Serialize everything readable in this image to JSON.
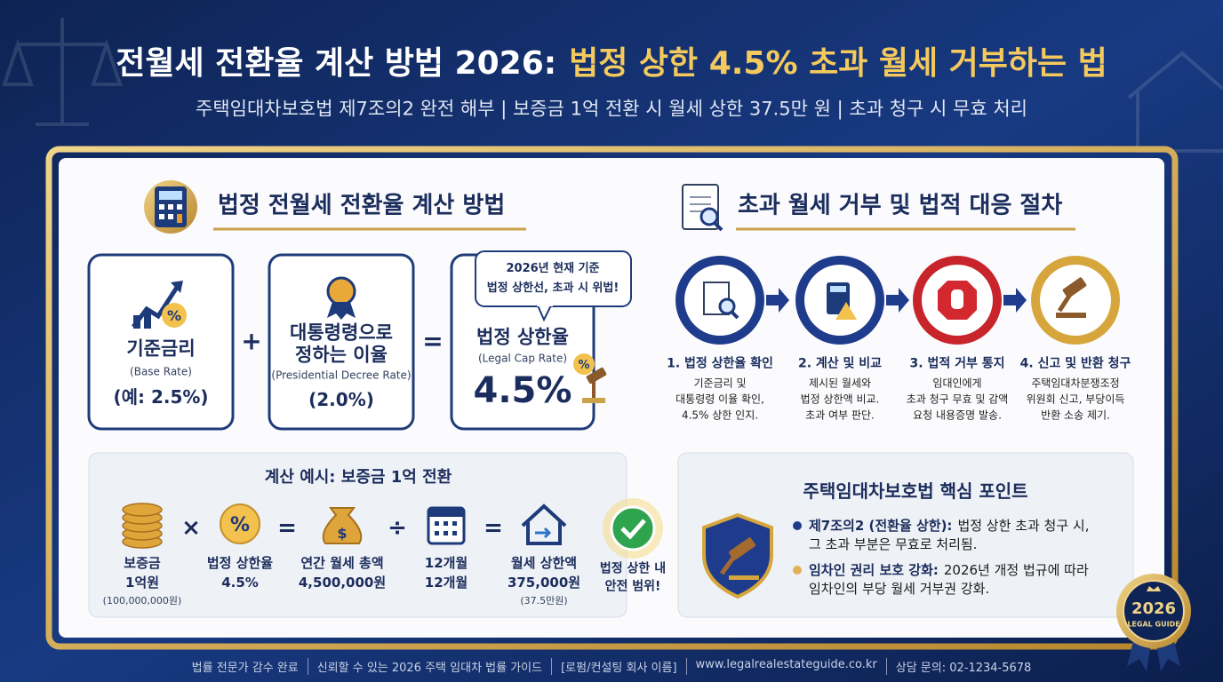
{
  "header": {
    "title_lead": "전월세 전환율 계산 방법 2026:",
    "title_highlight": "법정 상한 4.5% 초과 월세 거부하는 법",
    "subtitle": "주택임대차보호법 제7조의2 완전 해부 | 보증금 1억 전환 시 월세 상한 37.5만 원 | 초과 청구 시 무효 처리"
  },
  "calculation": {
    "heading": "법정 전월세 전환율 계산 방법",
    "cards": [
      {
        "title_lines": [
          "기준금리"
        ],
        "subtitle": "(Base Rate)",
        "value": "(예: 2.5%)"
      },
      {
        "title_lines": [
          "대통령령으로",
          "정하는 이율"
        ],
        "subtitle": "(Presidential Decree Rate)",
        "value": "(2.0%)"
      },
      {
        "title_lines": [
          "법정 상한율"
        ],
        "subtitle": "(Legal Cap Rate)",
        "value": "4.5%"
      }
    ],
    "operators": [
      "+",
      "="
    ],
    "callout_lines": [
      "2026년 현재 기준",
      "법정 상한선, 초과 시 위법!"
    ]
  },
  "example": {
    "title": "계산 예시: 보증금 1억 전환",
    "items": [
      {
        "label": "보증금",
        "value": "1억원",
        "note": "(100,000,000원)"
      },
      {
        "label": "법정 상한율",
        "value": "4.5%"
      },
      {
        "label": "연간 월세 총액",
        "value": "4,500,000원"
      },
      {
        "label": "12개월",
        "value": "12개월"
      },
      {
        "label": "월세 상한액",
        "value": "375,000원",
        "note": "(37.5만원)"
      }
    ],
    "operators": [
      "×",
      "=",
      "÷",
      "="
    ],
    "result_lines": [
      "법정 상한 내",
      "안전 범위!"
    ]
  },
  "procedure": {
    "heading": "초과 월세 거부 및 법적 대응 절차",
    "steps": [
      {
        "title": "1. 법정 상한율 확인",
        "lines": [
          "기준금리 및",
          "대통령령 이율 확인,",
          "4.5% 상한 인지."
        ]
      },
      {
        "title": "2. 계산 및 비교",
        "lines": [
          "제시된 월세와",
          "법정 상한액 비교.",
          "초과 여부 판단."
        ]
      },
      {
        "title": "3. 법적 거부 통지",
        "lines": [
          "임대인에게",
          "초과 청구 무효 및 감액",
          "요청 내용증명 발송."
        ]
      },
      {
        "title": "4. 신고 및 반환 청구",
        "lines": [
          "주택임대차분쟁조정",
          "위원회 신고, 부당이득",
          "반환 소송 제기."
        ]
      }
    ]
  },
  "key_points": {
    "title": "주택임대차보호법 핵심 포인트",
    "items": [
      {
        "label": "제7조의2 (전환율 상한):",
        "text_lines": [
          "법정 상한 초과 청구 시,",
          "그 초과 부분은 무효로 처리됨."
        ]
      },
      {
        "label": "임차인 권리 보호 강화:",
        "text_lines": [
          "2026년 개정 법규에 따라",
          "임차인의 부당 월세 거부권 강화."
        ]
      }
    ]
  },
  "badge": {
    "year": "2026",
    "label": "LEGAL GUIDE"
  },
  "footer": {
    "items": [
      "법률 전문가 감수 완료",
      "신뢰할 수 있는 2026 주택 임대차 법률 가이드",
      "[로펌/컨설팅 회사 이름]",
      "www.legalrealestateguide.co.kr",
      "상담 문의: 02-1234-5678"
    ]
  }
}
